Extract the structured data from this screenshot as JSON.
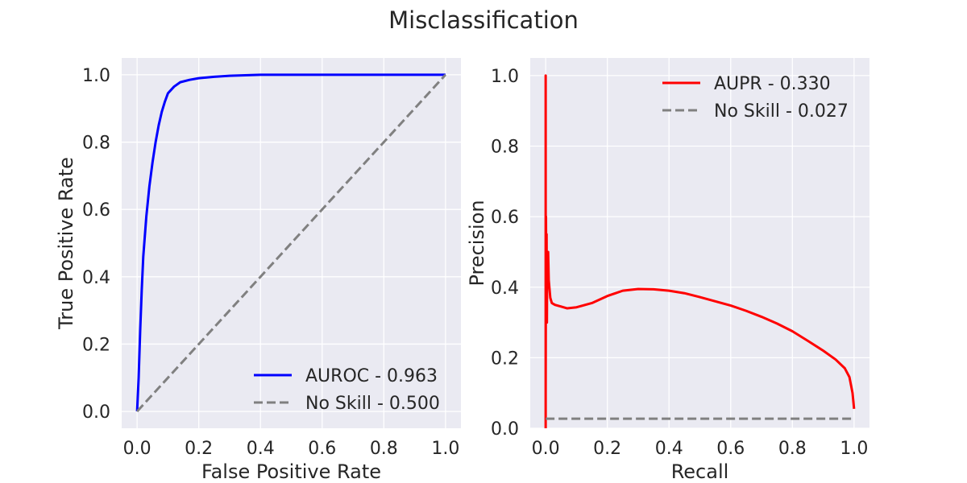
{
  "figure": {
    "title": "Misclassification",
    "panel_background": "#eaeaf2",
    "grid_color": "#ffffff"
  },
  "chart_data": [
    {
      "type": "line",
      "xlabel": "False Positive Rate",
      "ylabel": "True Positive Rate",
      "xlim": [
        -0.05,
        1.05
      ],
      "ylim": [
        -0.05,
        1.05
      ],
      "xticks": [
        0.0,
        0.2,
        0.4,
        0.6,
        0.8,
        1.0
      ],
      "yticks": [
        0.0,
        0.2,
        0.4,
        0.6,
        0.8,
        1.0
      ],
      "grid": true,
      "legend_position": "lower-right",
      "series": [
        {
          "name": "AUROC - 0.963",
          "color": "#0000ff",
          "style": "solid",
          "points": [
            [
              0.0,
              0.0
            ],
            [
              0.005,
              0.1
            ],
            [
              0.01,
              0.24
            ],
            [
              0.015,
              0.36
            ],
            [
              0.02,
              0.46
            ],
            [
              0.03,
              0.58
            ],
            [
              0.04,
              0.67
            ],
            [
              0.05,
              0.74
            ],
            [
              0.06,
              0.8
            ],
            [
              0.07,
              0.85
            ],
            [
              0.08,
              0.89
            ],
            [
              0.09,
              0.92
            ],
            [
              0.1,
              0.945
            ],
            [
              0.12,
              0.965
            ],
            [
              0.14,
              0.978
            ],
            [
              0.17,
              0.985
            ],
            [
              0.2,
              0.99
            ],
            [
              0.25,
              0.994
            ],
            [
              0.3,
              0.997
            ],
            [
              0.4,
              1.0
            ],
            [
              0.6,
              1.0
            ],
            [
              0.8,
              1.0
            ],
            [
              1.0,
              1.0
            ]
          ]
        },
        {
          "name": "No Skill - 0.500",
          "color": "#808080",
          "style": "dashed",
          "points": [
            [
              0.0,
              0.0
            ],
            [
              1.0,
              1.0
            ]
          ]
        }
      ]
    },
    {
      "type": "line",
      "xlabel": "Recall",
      "ylabel": "Precision",
      "xlim": [
        -0.05,
        1.05
      ],
      "ylim": [
        0.0,
        1.05
      ],
      "xticks": [
        0.0,
        0.2,
        0.4,
        0.6,
        0.8,
        1.0
      ],
      "yticks": [
        0.0,
        0.2,
        0.4,
        0.6,
        0.8,
        1.0
      ],
      "grid": true,
      "legend_position": "top-right",
      "series": [
        {
          "name": "AUPR - 0.330",
          "color": "#ff0000",
          "style": "solid",
          "points": [
            [
              0.0,
              0.0
            ],
            [
              0.0,
              1.0
            ],
            [
              0.0,
              0.1
            ],
            [
              0.001,
              0.6
            ],
            [
              0.002,
              0.4
            ],
            [
              0.003,
              0.55
            ],
            [
              0.004,
              0.3
            ],
            [
              0.005,
              0.5
            ],
            [
              0.006,
              0.45
            ],
            [
              0.008,
              0.5
            ],
            [
              0.01,
              0.42
            ],
            [
              0.015,
              0.37
            ],
            [
              0.02,
              0.355
            ],
            [
              0.03,
              0.35
            ],
            [
              0.05,
              0.345
            ],
            [
              0.07,
              0.34
            ],
            [
              0.1,
              0.343
            ],
            [
              0.15,
              0.355
            ],
            [
              0.2,
              0.375
            ],
            [
              0.25,
              0.39
            ],
            [
              0.3,
              0.395
            ],
            [
              0.35,
              0.394
            ],
            [
              0.4,
              0.39
            ],
            [
              0.45,
              0.383
            ],
            [
              0.5,
              0.372
            ],
            [
              0.55,
              0.36
            ],
            [
              0.6,
              0.348
            ],
            [
              0.65,
              0.333
            ],
            [
              0.7,
              0.316
            ],
            [
              0.75,
              0.297
            ],
            [
              0.8,
              0.275
            ],
            [
              0.85,
              0.248
            ],
            [
              0.9,
              0.22
            ],
            [
              0.94,
              0.195
            ],
            [
              0.97,
              0.17
            ],
            [
              0.985,
              0.145
            ],
            [
              0.995,
              0.1
            ],
            [
              1.0,
              0.055
            ]
          ]
        },
        {
          "name": "No Skill - 0.027",
          "color": "#808080",
          "style": "dashed",
          "points": [
            [
              0.0,
              0.027
            ],
            [
              1.0,
              0.027
            ]
          ]
        }
      ]
    }
  ]
}
